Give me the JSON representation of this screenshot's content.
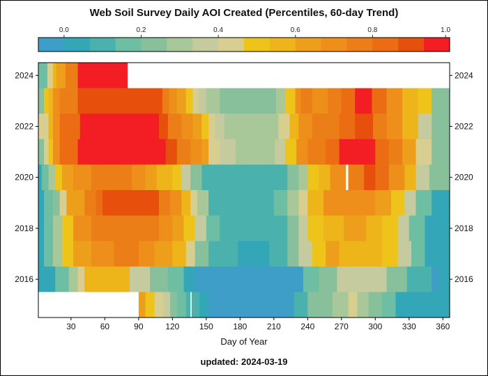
{
  "chart_data": {
    "type": "heatmap",
    "title": "Web Soil Survey Daily AOI Created (Percentiles, 60-day Trend)",
    "xlabel": "Day of Year",
    "ylabel": "",
    "footer": "updated: 2024-03-19",
    "xlim": [
      1,
      366
    ],
    "ylim": [
      2015,
      2024
    ],
    "x_ticks": [
      30,
      60,
      90,
      120,
      150,
      180,
      210,
      240,
      270,
      300,
      330,
      360
    ],
    "y_ticks": [
      2016,
      2018,
      2020,
      2022,
      2024
    ],
    "colorbar": {
      "position": "top",
      "range": [
        0,
        1
      ],
      "ticks": [
        "0.0",
        "0.2",
        "0.4",
        "0.6",
        "0.8",
        "1.0"
      ],
      "colors": [
        "#3F9EC8",
        "#33A6B7",
        "#4BB1AD",
        "#6EBEA4",
        "#88C09C",
        "#A8C89A",
        "#C5CB9E",
        "#D7CE8F",
        "#EEC41A",
        "#EEB51A",
        "#ED9F1B",
        "#ED8F1A",
        "#EC7E17",
        "#EB6C12",
        "#E64F0C",
        "#F21E24"
      ]
    },
    "rows": [
      {
        "year": 2024,
        "bands": [
          [
            1,
            9,
            0.23
          ],
          [
            9,
            14,
            0.45
          ],
          [
            14,
            17,
            0.6
          ],
          [
            17,
            25,
            0.68
          ],
          [
            25,
            36,
            0.78
          ],
          [
            36,
            76,
            0.95
          ],
          [
            76,
            80,
            1.0
          ]
        ]
      },
      {
        "year": 2023,
        "bands": [
          [
            1,
            6,
            0.3
          ],
          [
            6,
            10,
            0.5
          ],
          [
            10,
            14,
            0.6
          ],
          [
            14,
            20,
            0.7
          ],
          [
            20,
            36,
            0.8
          ],
          [
            36,
            111,
            0.88
          ],
          [
            111,
            117,
            0.8
          ],
          [
            117,
            124,
            0.72
          ],
          [
            124,
            132,
            0.65
          ],
          [
            132,
            138,
            0.55
          ],
          [
            138,
            143,
            0.45
          ],
          [
            143,
            150,
            0.4
          ],
          [
            150,
            162,
            0.33
          ],
          [
            162,
            176,
            0.28
          ],
          [
            176,
            212,
            0.25
          ],
          [
            212,
            220,
            0.35
          ],
          [
            220,
            229,
            0.55
          ],
          [
            229,
            234,
            0.7
          ],
          [
            234,
            244,
            0.8
          ],
          [
            244,
            258,
            0.72
          ],
          [
            258,
            270,
            0.8
          ],
          [
            270,
            282,
            0.85
          ],
          [
            282,
            297,
            0.95
          ],
          [
            297,
            310,
            0.82
          ],
          [
            310,
            324,
            0.72
          ],
          [
            324,
            338,
            0.62
          ],
          [
            338,
            350,
            0.5
          ],
          [
            350,
            366,
            0.3
          ]
        ]
      },
      {
        "year": 2022,
        "bands": [
          [
            1,
            10,
            0.45
          ],
          [
            10,
            14,
            0.6
          ],
          [
            14,
            20,
            0.7
          ],
          [
            20,
            38,
            0.82
          ],
          [
            38,
            108,
            0.95
          ],
          [
            108,
            116,
            0.88
          ],
          [
            116,
            128,
            0.8
          ],
          [
            128,
            138,
            0.72
          ],
          [
            138,
            146,
            0.65
          ],
          [
            146,
            152,
            0.55
          ],
          [
            152,
            158,
            0.45
          ],
          [
            158,
            166,
            0.4
          ],
          [
            166,
            214,
            0.35
          ],
          [
            214,
            224,
            0.45
          ],
          [
            224,
            232,
            0.6
          ],
          [
            232,
            244,
            0.7
          ],
          [
            244,
            258,
            0.75
          ],
          [
            258,
            268,
            0.8
          ],
          [
            268,
            282,
            0.82
          ],
          [
            282,
            298,
            0.88
          ],
          [
            298,
            310,
            0.8
          ],
          [
            310,
            324,
            0.7
          ],
          [
            324,
            338,
            0.6
          ],
          [
            338,
            350,
            0.42
          ],
          [
            350,
            366,
            0.3
          ]
        ]
      },
      {
        "year": 2021,
        "bands": [
          [
            1,
            6,
            0.3
          ],
          [
            6,
            10,
            0.45
          ],
          [
            10,
            14,
            0.55
          ],
          [
            14,
            20,
            0.72
          ],
          [
            20,
            36,
            0.82
          ],
          [
            36,
            114,
            0.95
          ],
          [
            114,
            124,
            0.88
          ],
          [
            124,
            136,
            0.8
          ],
          [
            136,
            146,
            0.72
          ],
          [
            146,
            152,
            0.65
          ],
          [
            152,
            162,
            0.45
          ],
          [
            162,
            176,
            0.38
          ],
          [
            176,
            211,
            0.33
          ],
          [
            211,
            220,
            0.4
          ],
          [
            220,
            230,
            0.55
          ],
          [
            230,
            240,
            0.7
          ],
          [
            240,
            256,
            0.75
          ],
          [
            256,
            268,
            0.82
          ],
          [
            268,
            300,
            0.95
          ],
          [
            300,
            312,
            0.82
          ],
          [
            312,
            324,
            0.75
          ],
          [
            324,
            336,
            0.65
          ],
          [
            336,
            350,
            0.45
          ],
          [
            350,
            366,
            0.3
          ]
        ]
      },
      {
        "year": 2020,
        "bands": [
          [
            1,
            4,
            0.12
          ],
          [
            4,
            10,
            0.2
          ],
          [
            10,
            16,
            0.35
          ],
          [
            16,
            22,
            0.5
          ],
          [
            22,
            32,
            0.68
          ],
          [
            32,
            48,
            0.72
          ],
          [
            48,
            84,
            0.78
          ],
          [
            84,
            96,
            0.7
          ],
          [
            96,
            106,
            0.65
          ],
          [
            106,
            120,
            0.6
          ],
          [
            120,
            128,
            0.5
          ],
          [
            128,
            136,
            0.42
          ],
          [
            136,
            146,
            0.3
          ],
          [
            146,
            176,
            0.18
          ],
          [
            176,
            206,
            0.15
          ],
          [
            206,
            222,
            0.18
          ],
          [
            222,
            232,
            0.25
          ],
          [
            232,
            240,
            0.35
          ],
          [
            240,
            250,
            0.5
          ],
          [
            250,
            260,
            0.6
          ],
          [
            260,
            274,
            0.72
          ],
          [
            274,
            276,
            null
          ],
          [
            276,
            290,
            0.78
          ],
          [
            290,
            300,
            0.88
          ],
          [
            300,
            312,
            0.82
          ],
          [
            312,
            326,
            0.72
          ],
          [
            326,
            336,
            0.6
          ],
          [
            336,
            348,
            0.42
          ],
          [
            348,
            366,
            0.28
          ]
        ]
      },
      {
        "year": 2019,
        "bands": [
          [
            1,
            6,
            0.12
          ],
          [
            6,
            14,
            0.2
          ],
          [
            14,
            20,
            0.3
          ],
          [
            20,
            26,
            0.45
          ],
          [
            26,
            42,
            0.68
          ],
          [
            42,
            52,
            0.75
          ],
          [
            52,
            58,
            0.82
          ],
          [
            58,
            108,
            0.88
          ],
          [
            108,
            118,
            0.78
          ],
          [
            118,
            128,
            0.7
          ],
          [
            128,
            136,
            0.6
          ],
          [
            136,
            142,
            0.48
          ],
          [
            142,
            152,
            0.35
          ],
          [
            152,
            210,
            0.18
          ],
          [
            210,
            222,
            0.22
          ],
          [
            222,
            232,
            0.32
          ],
          [
            232,
            240,
            0.45
          ],
          [
            240,
            254,
            0.6
          ],
          [
            254,
            270,
            0.7
          ],
          [
            270,
            300,
            0.72
          ],
          [
            300,
            314,
            0.65
          ],
          [
            314,
            326,
            0.55
          ],
          [
            326,
            336,
            0.38
          ],
          [
            336,
            350,
            0.2
          ],
          [
            350,
            366,
            0.12
          ]
        ]
      },
      {
        "year": 2018,
        "bands": [
          [
            1,
            6,
            0.1
          ],
          [
            6,
            14,
            0.2
          ],
          [
            14,
            22,
            0.35
          ],
          [
            22,
            32,
            0.55
          ],
          [
            32,
            48,
            0.7
          ],
          [
            48,
            72,
            0.8
          ],
          [
            72,
            108,
            0.78
          ],
          [
            108,
            120,
            0.72
          ],
          [
            120,
            130,
            0.65
          ],
          [
            130,
            140,
            0.55
          ],
          [
            140,
            150,
            0.38
          ],
          [
            150,
            162,
            0.2
          ],
          [
            162,
            210,
            0.15
          ],
          [
            210,
            222,
            0.18
          ],
          [
            222,
            232,
            0.28
          ],
          [
            232,
            240,
            0.4
          ],
          [
            240,
            254,
            0.55
          ],
          [
            254,
            272,
            0.6
          ],
          [
            272,
            292,
            0.65
          ],
          [
            292,
            306,
            0.6
          ],
          [
            306,
            320,
            0.55
          ],
          [
            320,
            330,
            0.4
          ],
          [
            330,
            344,
            0.22
          ],
          [
            344,
            366,
            0.12
          ]
        ]
      },
      {
        "year": 2017,
        "bands": [
          [
            1,
            6,
            0.1
          ],
          [
            6,
            14,
            0.22
          ],
          [
            14,
            22,
            0.35
          ],
          [
            22,
            32,
            0.55
          ],
          [
            32,
            48,
            0.68
          ],
          [
            48,
            68,
            0.72
          ],
          [
            68,
            90,
            0.75
          ],
          [
            90,
            104,
            0.7
          ],
          [
            104,
            120,
            0.65
          ],
          [
            120,
            132,
            0.6
          ],
          [
            132,
            140,
            0.45
          ],
          [
            140,
            152,
            0.25
          ],
          [
            152,
            178,
            0.15
          ],
          [
            178,
            186,
            0.08
          ],
          [
            186,
            206,
            0.12
          ],
          [
            206,
            222,
            0.18
          ],
          [
            222,
            232,
            0.28
          ],
          [
            232,
            244,
            0.42
          ],
          [
            244,
            256,
            0.55
          ],
          [
            256,
            268,
            0.65
          ],
          [
            268,
            286,
            0.6
          ],
          [
            286,
            306,
            0.58
          ],
          [
            306,
            320,
            0.55
          ],
          [
            320,
            332,
            0.38
          ],
          [
            332,
            344,
            0.22
          ],
          [
            344,
            366,
            0.12
          ]
        ]
      },
      {
        "year": 2016,
        "bands": [
          [
            1,
            16,
            0.08
          ],
          [
            16,
            28,
            0.2
          ],
          [
            28,
            36,
            0.35
          ],
          [
            36,
            42,
            0.45
          ],
          [
            42,
            82,
            0.58
          ],
          [
            82,
            100,
            0.42
          ],
          [
            100,
            116,
            0.3
          ],
          [
            116,
            130,
            0.2
          ],
          [
            130,
            140,
            0.12
          ],
          [
            140,
            176,
            0.05
          ],
          [
            176,
            180,
            0.0
          ],
          [
            180,
            236,
            0.05
          ],
          [
            236,
            250,
            0.2
          ],
          [
            250,
            266,
            0.3
          ],
          [
            266,
            310,
            0.4
          ],
          [
            310,
            328,
            0.3
          ],
          [
            328,
            350,
            0.15
          ],
          [
            350,
            356,
            0.05
          ],
          [
            356,
            366,
            0.12
          ]
        ]
      },
      {
        "year": 2015,
        "bands": [
          [
            1,
            90,
            null
          ],
          [
            90,
            96,
            0.65
          ],
          [
            96,
            104,
            0.55
          ],
          [
            104,
            112,
            0.48
          ],
          [
            112,
            118,
            0.38
          ],
          [
            118,
            124,
            0.3
          ],
          [
            124,
            132,
            0.2
          ],
          [
            132,
            136,
            0.15
          ],
          [
            136,
            137,
            null
          ],
          [
            137,
            144,
            0.15
          ],
          [
            144,
            152,
            0.12
          ],
          [
            152,
            228,
            0.05
          ],
          [
            228,
            240,
            0.15
          ],
          [
            240,
            262,
            0.3
          ],
          [
            262,
            276,
            0.35
          ],
          [
            276,
            284,
            0.45
          ],
          [
            284,
            294,
            0.35
          ],
          [
            294,
            306,
            0.25
          ],
          [
            306,
            318,
            0.2
          ],
          [
            318,
            336,
            0.12
          ],
          [
            336,
            366,
            0.08
          ]
        ]
      }
    ]
  }
}
